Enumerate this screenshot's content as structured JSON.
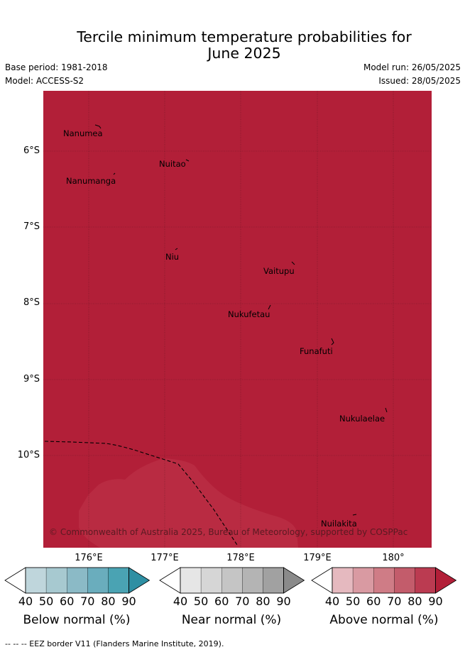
{
  "title": {
    "line1": "Tercile minimum temperature probabilities for",
    "line2": "June 2025"
  },
  "meta": {
    "base_period": "Base period: 1981-2018",
    "model": "Model: ACCESS-S2",
    "model_run": "Model run: 26/05/2025",
    "issued": "Issued: 28/05/2025"
  },
  "map": {
    "background_color": "#b21f38",
    "lighter_patch_color": "#b92b42",
    "lat_labels": [
      "6°S",
      "7°S",
      "8°S",
      "9°S",
      "10°S"
    ],
    "lon_labels": [
      "176°E",
      "177°E",
      "178°E",
      "179°E",
      "180°"
    ],
    "places": [
      "Nanumea",
      "Nuitao",
      "Nanumanga",
      "Niu",
      "Vaitupu",
      "Nukufetau",
      "Funafuti",
      "Nukulaelae",
      "Nuilakita"
    ],
    "copyright": "© Commonwealth of Australia 2025, Bureau of Meteorology, supported by COSPPac"
  },
  "colorbars": [
    {
      "label": "Below normal (%)",
      "ticks": [
        "40",
        "50",
        "60",
        "70",
        "80",
        "90"
      ],
      "colors": [
        "#bfd6dc",
        "#a7c9d0",
        "#8bbac6",
        "#6aadbd",
        "#4aa3b3",
        "#2e8fa3"
      ]
    },
    {
      "label": "Near normal (%)",
      "ticks": [
        "40",
        "50",
        "60",
        "70",
        "80",
        "90"
      ],
      "colors": [
        "#e6e6e6",
        "#d6d6d6",
        "#c5c5c5",
        "#b4b4b4",
        "#a1a1a1",
        "#8a8a8a"
      ]
    },
    {
      "label": "Above normal (%)",
      "ticks": [
        "40",
        "50",
        "60",
        "70",
        "80",
        "90"
      ],
      "colors": [
        "#e5b9bf",
        "#d99aa2",
        "#cf7c86",
        "#c35c6b",
        "#bb3b51",
        "#b21f38"
      ]
    }
  ],
  "footnote": "--  --  -- EEZ border V11 (Flanders Marine Institute, 2019)."
}
